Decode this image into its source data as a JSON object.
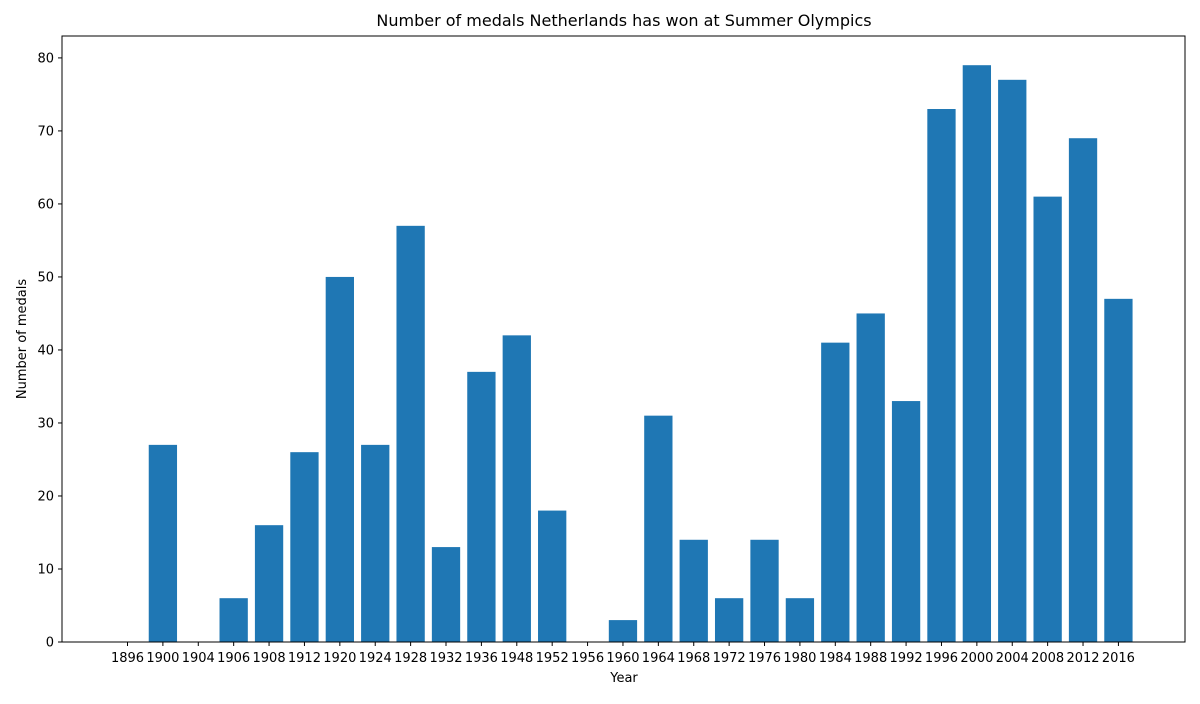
{
  "chart_data": {
    "type": "bar",
    "title": "Number of medals Netherlands has won at Summer Olympics",
    "xlabel": "Year",
    "ylabel": "Number of medals",
    "categories": [
      "1896",
      "1900",
      "1904",
      "1906",
      "1908",
      "1912",
      "1920",
      "1924",
      "1928",
      "1932",
      "1936",
      "1948",
      "1952",
      "1956",
      "1960",
      "1964",
      "1968",
      "1972",
      "1976",
      "1980",
      "1984",
      "1988",
      "1992",
      "1996",
      "2000",
      "2004",
      "2008",
      "2012",
      "2016"
    ],
    "values": [
      0,
      27,
      0,
      6,
      16,
      26,
      50,
      27,
      57,
      13,
      37,
      42,
      18,
      0,
      3,
      31,
      14,
      6,
      14,
      6,
      41,
      45,
      33,
      73,
      79,
      77,
      61,
      69,
      47
    ],
    "yticks": [
      0,
      10,
      20,
      30,
      40,
      50,
      60,
      70,
      80
    ],
    "ylim": [
      0,
      83
    ],
    "bar_color": "#1f77b4",
    "grid": false,
    "legend": "none"
  }
}
